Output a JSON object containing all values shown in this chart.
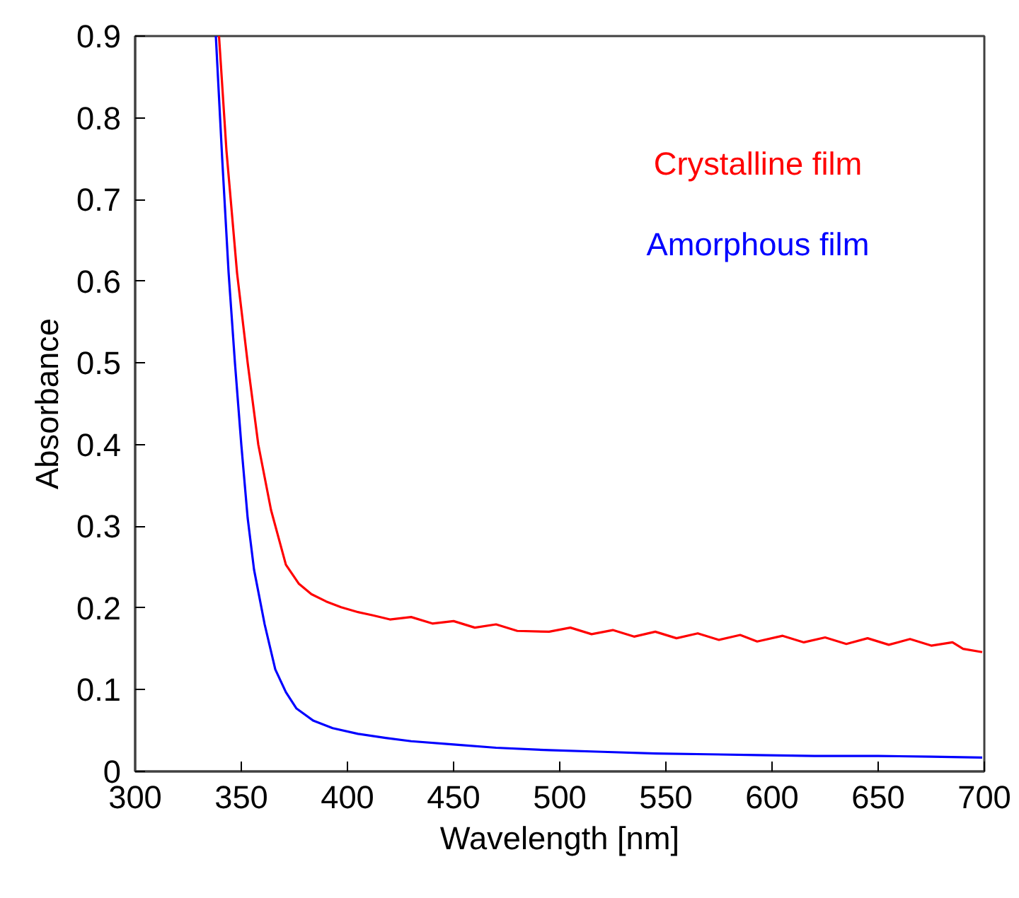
{
  "chart_data": {
    "type": "line",
    "xlabel": "Wavelength [nm]",
    "ylabel": "Absorbance",
    "xlim": [
      300,
      700
    ],
    "ylim": [
      0,
      0.9
    ],
    "xticks": [
      300,
      350,
      400,
      450,
      500,
      550,
      600,
      650,
      700
    ],
    "yticks": [
      0,
      0.1,
      0.2,
      0.3,
      0.4,
      0.5,
      0.6,
      0.7,
      0.8,
      0.9
    ],
    "grid": false,
    "legend": "top right",
    "marker": "none",
    "line_style": "solid",
    "series": [
      {
        "name": "Crystalline film",
        "color": "#ff0000",
        "x": [
          339.5,
          343,
          348,
          353,
          358,
          364,
          371,
          377,
          383,
          390,
          397,
          405,
          412,
          420,
          430,
          440,
          450,
          460,
          470,
          480,
          495,
          505,
          515,
          525,
          535,
          545,
          555,
          565,
          575,
          585,
          593,
          605,
          615,
          625,
          635,
          645,
          655,
          665,
          675,
          685,
          690,
          699
        ],
        "values": [
          0.9,
          0.76,
          0.61,
          0.5,
          0.4,
          0.32,
          0.253,
          0.23,
          0.217,
          0.208,
          0.201,
          0.195,
          0.191,
          0.186,
          0.189,
          0.181,
          0.184,
          0.176,
          0.18,
          0.172,
          0.171,
          0.176,
          0.168,
          0.173,
          0.165,
          0.171,
          0.163,
          0.169,
          0.161,
          0.167,
          0.159,
          0.166,
          0.158,
          0.164,
          0.156,
          0.163,
          0.155,
          0.162,
          0.154,
          0.158,
          0.15,
          0.146
        ]
      },
      {
        "name": "Amorphous film",
        "color": "#0000ff",
        "x": [
          338,
          341,
          344,
          347,
          350,
          353,
          356,
          361,
          366,
          371,
          376,
          384,
          393,
          405,
          418,
          430,
          450,
          470,
          495,
          520,
          545,
          570,
          593,
          620,
          650,
          675,
          699
        ],
        "values": [
          0.9,
          0.75,
          0.611,
          0.5,
          0.4,
          0.31,
          0.247,
          0.18,
          0.125,
          0.097,
          0.077,
          0.062,
          0.053,
          0.046,
          0.041,
          0.037,
          0.033,
          0.029,
          0.026,
          0.024,
          0.022,
          0.021,
          0.02,
          0.019,
          0.019,
          0.018,
          0.017
        ]
      }
    ]
  }
}
